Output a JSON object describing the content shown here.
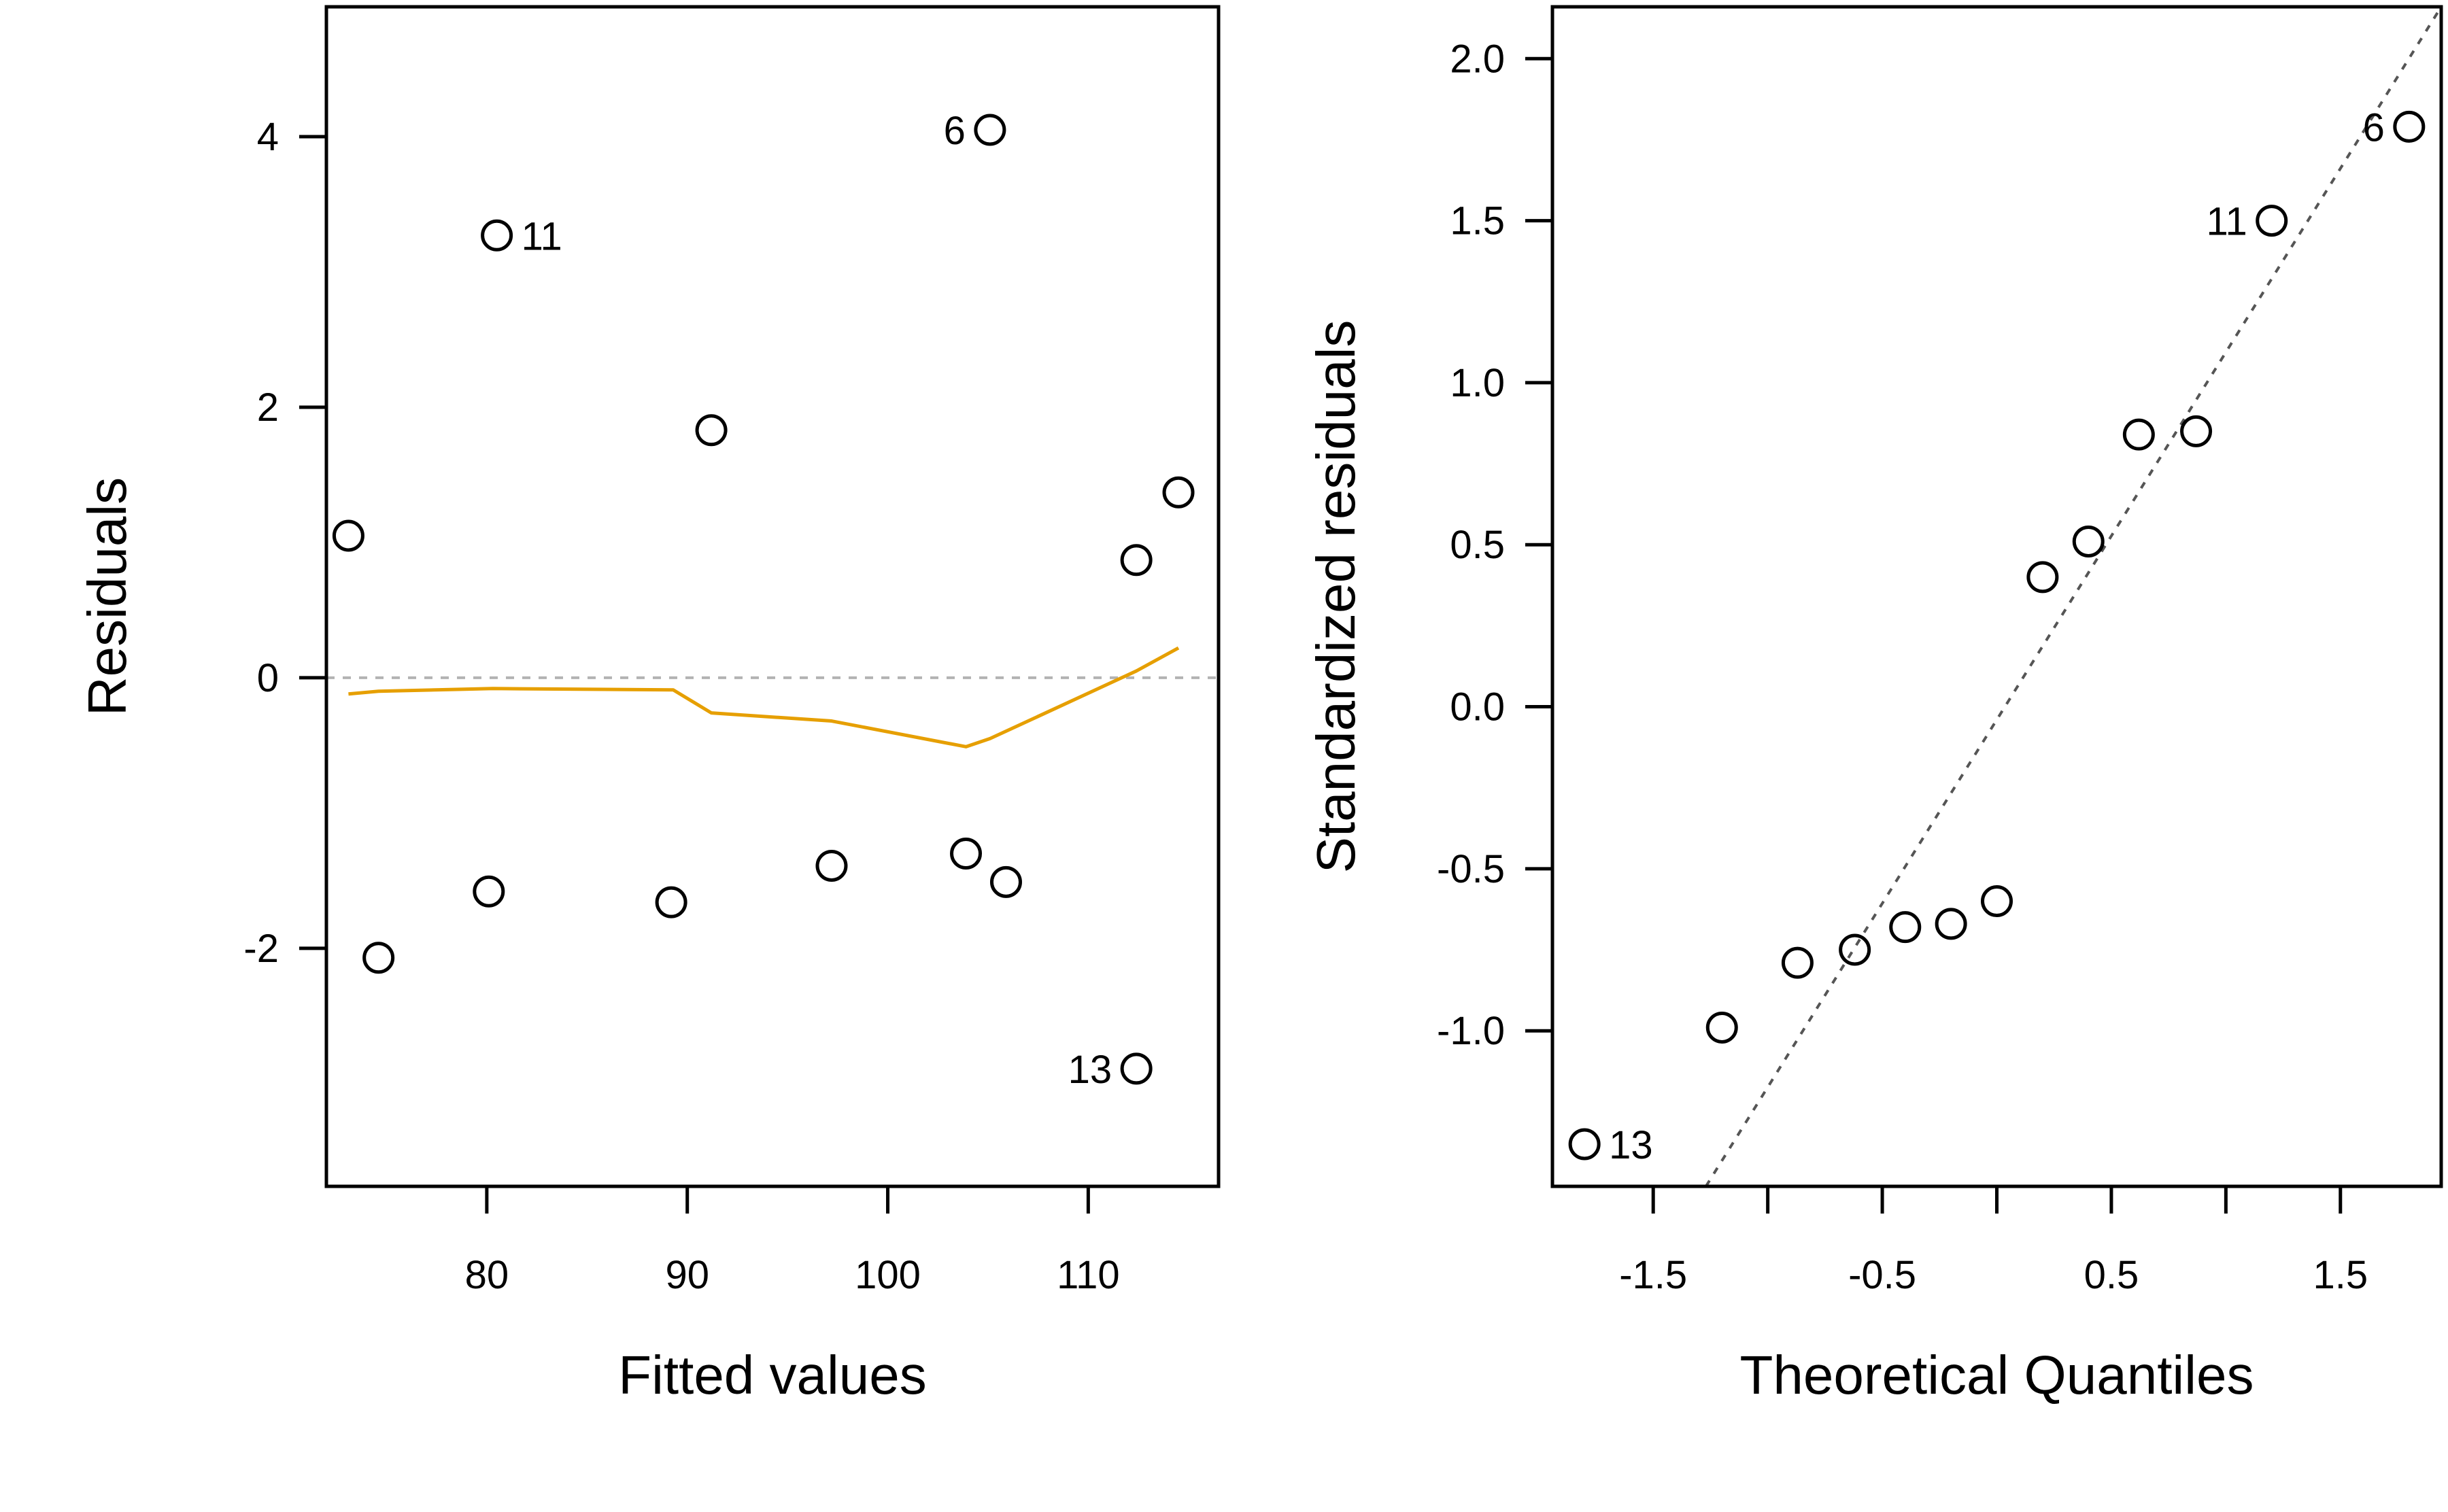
{
  "chart_data": [
    {
      "type": "scatter",
      "title": "",
      "xlabel": "Fitted values",
      "ylabel": "Residuals",
      "xlim": [
        72,
        116.5
      ],
      "ylim": [
        -3.76,
        4.96
      ],
      "x_ticks": [
        {
          "value": 80,
          "label": "80"
        },
        {
          "value": 90,
          "label": "90"
        },
        {
          "value": 100,
          "label": "100"
        },
        {
          "value": 110,
          "label": "110"
        }
      ],
      "y_ticks": [
        {
          "value": -2,
          "label": "-2"
        },
        {
          "value": 0,
          "label": "0"
        },
        {
          "value": 2,
          "label": "2"
        },
        {
          "value": 4,
          "label": "4"
        }
      ],
      "grid": false,
      "reference_line": {
        "y": 0,
        "style": "dashed",
        "color": "#b3b3b3"
      },
      "points": [
        {
          "x": 73.1,
          "y": 1.05
        },
        {
          "x": 74.6,
          "y": -2.07
        },
        {
          "x": 80.1,
          "y": -1.58
        },
        {
          "x": 80.5,
          "y": 3.27,
          "label": "11",
          "label_side": "right"
        },
        {
          "x": 89.2,
          "y": -1.66
        },
        {
          "x": 91.2,
          "y": 1.83
        },
        {
          "x": 97.2,
          "y": -1.39
        },
        {
          "x": 103.9,
          "y": -1.3
        },
        {
          "x": 105.1,
          "y": 4.05,
          "label": "6",
          "label_side": "left"
        },
        {
          "x": 105.9,
          "y": -1.51
        },
        {
          "x": 112.4,
          "y": 0.87
        },
        {
          "x": 112.4,
          "y": -2.89,
          "label": "13",
          "label_side": "left"
        },
        {
          "x": 114.5,
          "y": 1.37
        }
      ],
      "smoother": {
        "color": "#e69f00",
        "x": [
          73.1,
          74.6,
          80.3,
          89.3,
          91.2,
          97.2,
          103.9,
          105.1,
          112.4,
          114.5
        ],
        "y": [
          -0.12,
          -0.1,
          -0.08,
          -0.09,
          -0.26,
          -0.32,
          -0.51,
          -0.45,
          0.05,
          0.22
        ]
      }
    },
    {
      "type": "scatter",
      "title": "",
      "xlabel": "Theoretical Quantiles",
      "ylabel": "Standardized residuals",
      "xlim": [
        -1.94,
        1.94
      ],
      "ylim": [
        -1.48,
        2.16
      ],
      "x_ticks": [
        {
          "value": -1.5,
          "label": "-1.5",
          "show_label": true
        },
        {
          "value": -1.0,
          "label": "-1.0",
          "show_label": false
        },
        {
          "value": -0.5,
          "label": "-0.5",
          "show_label": true
        },
        {
          "value": 0.0,
          "label": "0.0",
          "show_label": false
        },
        {
          "value": 0.5,
          "label": "0.5",
          "show_label": true
        },
        {
          "value": 1.0,
          "label": "1.0",
          "show_label": false
        },
        {
          "value": 1.5,
          "label": "1.5",
          "show_label": true
        }
      ],
      "y_ticks": [
        {
          "value": -1.0,
          "label": "-1.0"
        },
        {
          "value": -0.5,
          "label": "-0.5"
        },
        {
          "value": 0.0,
          "label": "0.0"
        },
        {
          "value": 0.5,
          "label": "0.5"
        },
        {
          "value": 1.0,
          "label": "1.0"
        },
        {
          "value": 1.5,
          "label": "1.5"
        },
        {
          "value": 2.0,
          "label": "2.0"
        }
      ],
      "grid": false,
      "reference_line": {
        "x1": -1.27,
        "y1": -1.48,
        "x2": 1.94,
        "y2": 2.16,
        "style": "dashed",
        "color": "#555555"
      },
      "points": [
        {
          "x": -1.8,
          "y": -1.35,
          "label": "13",
          "label_side": "right"
        },
        {
          "x": -1.2,
          "y": -0.99
        },
        {
          "x": -0.87,
          "y": -0.79
        },
        {
          "x": -0.62,
          "y": -0.75
        },
        {
          "x": -0.4,
          "y": -0.68
        },
        {
          "x": -0.2,
          "y": -0.67
        },
        {
          "x": 0.0,
          "y": -0.6
        },
        {
          "x": 0.2,
          "y": 0.4
        },
        {
          "x": 0.4,
          "y": 0.51
        },
        {
          "x": 0.62,
          "y": 0.84
        },
        {
          "x": 0.87,
          "y": 0.85
        },
        {
          "x": 1.2,
          "y": 1.5,
          "label": "11",
          "label_side": "left"
        },
        {
          "x": 1.8,
          "y": 1.79,
          "label": "6",
          "label_side": "left"
        }
      ]
    }
  ]
}
